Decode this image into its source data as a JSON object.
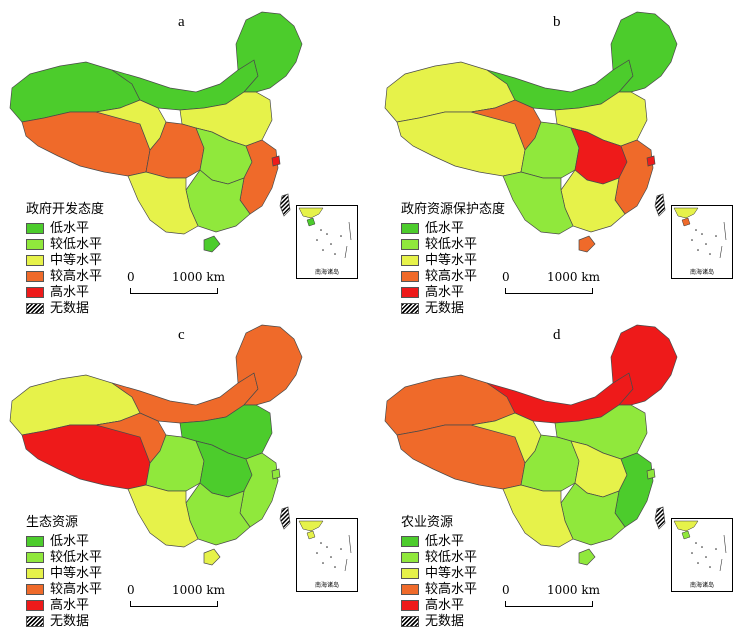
{
  "colors": {
    "low": "#4ccc2c",
    "lower_mid": "#90e83c",
    "mid": "#e6f24a",
    "higher": "#ef6a2a",
    "high": "#ee1a1a",
    "no_data": "hatch-black"
  },
  "legend_items": [
    "低水平",
    "较低水平",
    "中等水平",
    "较高水平",
    "高水平",
    "无数据"
  ],
  "scale": {
    "zero": "0",
    "dist": "1000 km"
  },
  "inset_caption": "南海诸岛",
  "panels": [
    {
      "label": "a",
      "title": "政府开发态度",
      "regions": {
        "northeast": "low",
        "inner_mongolia": "low",
        "xinjiang": "low",
        "north_china": "mid",
        "tibet": "higher",
        "qinghai": "mid",
        "sichuan": "higher",
        "central": "lower_mid",
        "southeast": "higher",
        "south": "lower_mid",
        "southwest": "mid",
        "hainan": "low",
        "taiwan": "no_data",
        "shanghai": "high"
      }
    },
    {
      "label": "b",
      "title": "政府资源保护态度",
      "regions": {
        "northeast": "low",
        "inner_mongolia": "low",
        "xinjiang": "mid",
        "north_china": "mid",
        "tibet": "mid",
        "qinghai": "higher",
        "sichuan": "lower_mid",
        "central": "high",
        "southeast": "higher",
        "south": "mid",
        "southwest": "lower_mid",
        "hainan": "higher",
        "taiwan": "no_data",
        "shanghai": "high"
      }
    },
    {
      "label": "c",
      "title": "生态资源",
      "regions": {
        "northeast": "higher",
        "inner_mongolia": "higher",
        "xinjiang": "mid",
        "north_china": "low",
        "tibet": "high",
        "qinghai": "higher",
        "sichuan": "lower_mid",
        "central": "low",
        "southeast": "lower_mid",
        "south": "lower_mid",
        "southwest": "mid",
        "hainan": "mid",
        "taiwan": "no_data",
        "shanghai": "lower_mid"
      }
    },
    {
      "label": "d",
      "title": "农业资源",
      "regions": {
        "northeast": "high",
        "inner_mongolia": "high",
        "xinjiang": "higher",
        "north_china": "lower_mid",
        "tibet": "higher",
        "qinghai": "mid",
        "sichuan": "lower_mid",
        "central": "mid",
        "southeast": "low",
        "south": "lower_mid",
        "southwest": "mid",
        "hainan": "lower_mid",
        "taiwan": "no_data",
        "shanghai": "lower_mid"
      }
    }
  ]
}
